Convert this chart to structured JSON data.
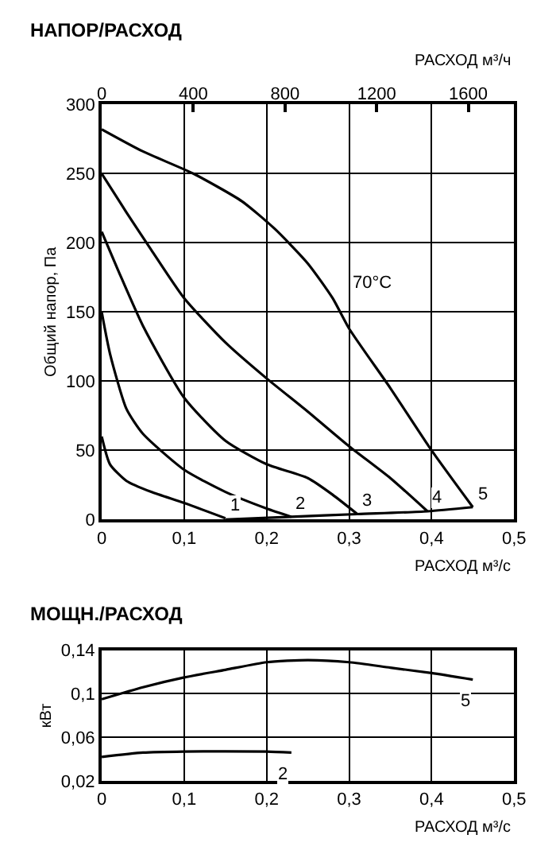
{
  "chart_data": [
    {
      "type": "line",
      "title": "НАПОР/РАСХОД",
      "xlabel": "РАСХОД м³/с",
      "x2label": "РАСХОД м³/ч",
      "ylabel": "Общий напор, Па",
      "xlim": [
        0,
        0.5
      ],
      "xticks": [
        0,
        {
          "value": 0.1,
          "label": "0,1"
        },
        {
          "value": 0.2,
          "label": "0,2"
        },
        {
          "value": 0.3,
          "label": "0,3"
        },
        {
          "value": 0.4,
          "label": "0,4"
        },
        {
          "value": 0.5,
          "label": "0,5"
        }
      ],
      "x2lim": [
        0,
        1800
      ],
      "x2ticks": [
        0,
        400,
        800,
        1200,
        1600
      ],
      "ylim": [
        0,
        300
      ],
      "yticks": [
        0,
        50,
        100,
        150,
        200,
        250,
        300
      ],
      "grid": true,
      "legend": false,
      "marker": "none",
      "line_style": "solid",
      "annotations": [
        "70°C"
      ],
      "series": [
        {
          "name": "1",
          "color": "#000000",
          "x": [
            0,
            0.01,
            0.03,
            0.06,
            0.1,
            0.15
          ],
          "values": [
            60,
            40,
            28,
            20,
            12,
            1
          ]
        },
        {
          "name": "2",
          "color": "#000000",
          "x": [
            0,
            0.01,
            0.03,
            0.05,
            0.1,
            0.15,
            0.2,
            0.23
          ],
          "values": [
            150,
            120,
            80,
            62,
            36,
            20,
            8,
            2
          ]
        },
        {
          "name": "3",
          "color": "#000000",
          "x": [
            0,
            0.02,
            0.05,
            0.1,
            0.15,
            0.2,
            0.25,
            0.28,
            0.31
          ],
          "values": [
            208,
            180,
            140,
            88,
            57,
            40,
            30,
            18,
            4
          ]
        },
        {
          "name": "4",
          "color": "#000000",
          "x": [
            0,
            0.03,
            0.06,
            0.1,
            0.15,
            0.2,
            0.25,
            0.3,
            0.35,
            0.395
          ],
          "values": [
            250,
            222,
            195,
            160,
            128,
            102,
            78,
            53,
            30,
            6
          ]
        },
        {
          "name": "5",
          "color": "#000000",
          "x": [
            0,
            0.05,
            0.111,
            0.17,
            0.21,
            0.25,
            0.28,
            0.3,
            0.35,
            0.4,
            0.45
          ],
          "values": [
            282,
            266,
            250,
            230,
            210,
            185,
            160,
            138,
            95,
            50,
            9
          ]
        },
        {
          "color": "#000000",
          "x": [
            0.15,
            0.23,
            0.31,
            0.395,
            0.45
          ],
          "values": [
            0,
            2,
            4,
            6,
            9
          ]
        }
      ]
    },
    {
      "type": "line",
      "title": "МОЩН./РАСХОД",
      "xlabel": "РАСХОД м³/с",
      "ylabel": "кВт",
      "xlim": [
        0,
        0.5
      ],
      "xticks": [
        0,
        {
          "value": 0.1,
          "label": "0,1"
        },
        {
          "value": 0.2,
          "label": "0,2"
        },
        {
          "value": 0.3,
          "label": "0,3"
        },
        {
          "value": 0.4,
          "label": "0,4"
        },
        {
          "value": 0.5,
          "label": "0,5"
        }
      ],
      "ylim": [
        0.02,
        0.14
      ],
      "yticks": [
        {
          "value": 0.02,
          "label": "0,02"
        },
        {
          "value": 0.06,
          "label": "0,06"
        },
        {
          "value": 0.1,
          "label": "0,1"
        },
        {
          "value": 0.14,
          "label": "0,14"
        }
      ],
      "grid": true,
      "legend": false,
      "marker": "none",
      "line_style": "solid",
      "series": [
        {
          "name": "5",
          "color": "#000000",
          "x": [
            0,
            0.05,
            0.1,
            0.15,
            0.2,
            0.25,
            0.3,
            0.35,
            0.4,
            0.45
          ],
          "values": [
            0.095,
            0.106,
            0.115,
            0.122,
            0.129,
            0.131,
            0.129,
            0.124,
            0.119,
            0.113
          ]
        },
        {
          "name": "2",
          "color": "#000000",
          "x": [
            0,
            0.05,
            0.1,
            0.2,
            0.23
          ],
          "values": [
            0.042,
            0.046,
            0.047,
            0.047,
            0.046
          ]
        }
      ]
    }
  ]
}
